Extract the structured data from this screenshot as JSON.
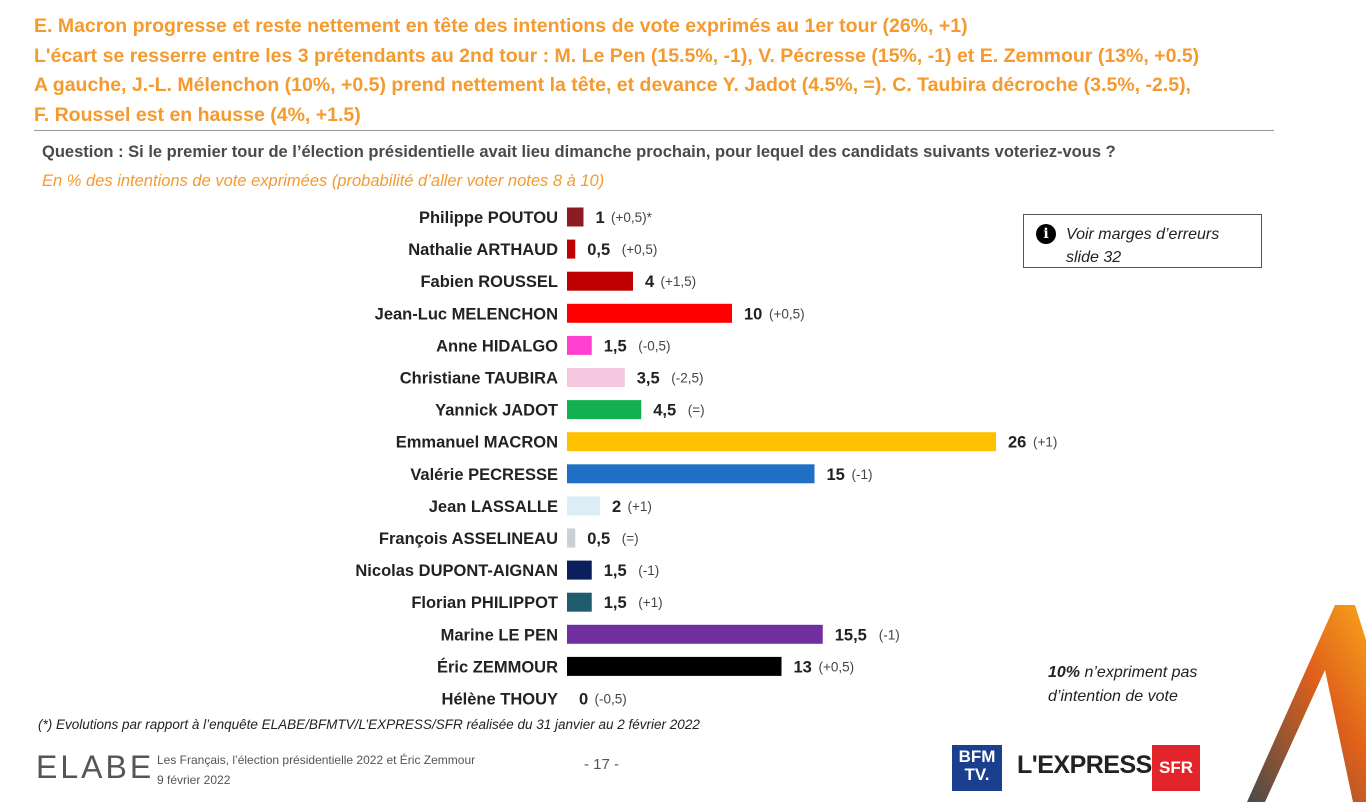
{
  "headline": {
    "line1": "E. Macron progresse et reste nettement en tête des intentions de vote exprimés au 1er tour (26%, +1)",
    "line2": "L'écart se resserre entre les 3 prétendants au 2nd tour : M. Le Pen (15.5%, -1), V. Pécresse (15%, -1) et E. Zemmour (13%, +0.5)",
    "line3": "A gauche, J.-L. Mélenchon (10%, +0.5) prend nettement la tête, et devance Y. Jadot (4.5%, =). C. Taubira décroche (3.5%, -2.5),",
    "line4": "F. Roussel est en hausse (4%, +1.5)"
  },
  "question": "Question : Si le premier tour de l’élection présidentielle avait lieu dimanche prochain, pour lequel des candidats suivants voteriez-vous ?",
  "subtitle": "En % des intentions de vote exprimées (probabilité d’aller voter notes 8 à 10)",
  "note_box": {
    "icon": "info-icon",
    "text": "Voir marges d’erreurs slide 32"
  },
  "abstain_value": "10%",
  "abstain_text": " n’expriment pas d’intention de vote",
  "footnote": "(*) Evolutions par rapport à l’enquête ELABE/BFMTV/L’EXPRESS/SFR réalisée du 31 janvier au 2 février 2022",
  "footer": {
    "logo": "ELABE",
    "study_title": "Les Français, l’élection présidentielle 2022 et Éric Zemmour",
    "date": "9 février 2022",
    "page": "- 17 -",
    "partners": [
      "BFM TV.",
      "L'EXPRESS",
      "SFR"
    ]
  },
  "chart_data": {
    "type": "bar",
    "orientation": "horizontal",
    "categories": [
      "Philippe POUTOU",
      "Nathalie ARTHAUD",
      "Fabien ROUSSEL",
      "Jean-Luc MELENCHON",
      "Anne HIDALGO",
      "Christiane TAUBIRA",
      "Yannick JADOT",
      "Emmanuel MACRON",
      "Valérie PECRESSE",
      "Jean LASSALLE",
      "François ASSELINEAU",
      "Nicolas DUPONT-AIGNAN",
      "Florian PHILIPPOT",
      "Marine LE PEN",
      "Éric ZEMMOUR",
      "Hélène THOUY"
    ],
    "values": [
      1,
      0.5,
      4,
      10,
      1.5,
      3.5,
      4.5,
      26,
      15,
      2,
      0.5,
      1.5,
      1.5,
      15.5,
      13,
      0
    ],
    "value_labels": [
      "1",
      "0,5",
      "4",
      "10",
      "1,5",
      "3,5",
      "4,5",
      "26",
      "15",
      "2",
      "0,5",
      "1,5",
      "1,5",
      "15,5",
      "13",
      "0"
    ],
    "changes": [
      "(+0,5)*",
      "(+0,5)",
      "(+1,5)",
      "(+0,5)",
      "(-0,5)",
      "(-2,5)",
      "(=)",
      "(+1)",
      "(-1)",
      "(+1)",
      "(=)",
      "(-1)",
      "(+1)",
      "(-1)",
      "(+0,5)",
      "(-0,5)"
    ],
    "colors": [
      "#8b1c24",
      "#c00000",
      "#c00000",
      "#ff0000",
      "#ff3fcf",
      "#f4c6e0",
      "#13b050",
      "#ffc000",
      "#1f6fc5",
      "#dbeef6",
      "#c8d0d8",
      "#0b1f5c",
      "#1f5c6e",
      "#7030a0",
      "#000000",
      "#ffffff"
    ],
    "unit": "%"
  }
}
